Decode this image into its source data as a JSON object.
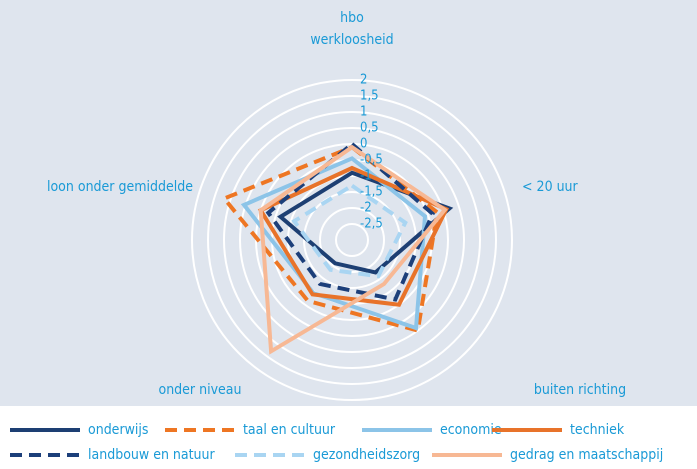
{
  "chart_data": {
    "type": "radar",
    "categories": [
      "hbo\nwerkloosheid",
      "< 20 uur",
      "buiten richting",
      "onder niveau",
      "loon onder gemiddelde"
    ],
    "ylim": [
      -3,
      2
    ],
    "yticks": [
      2,
      {
        "value": 1.5,
        "label": "1,5"
      },
      1,
      {
        "value": 0.5,
        "label": "0,5"
      },
      0,
      {
        "value": -0.5,
        "label": "-0,5"
      },
      -1,
      {
        "value": -1.5,
        "label": "-1,5"
      },
      -2,
      {
        "value": -2.5,
        "label": "-2,5"
      }
    ],
    "grid": true,
    "legend": "bottom",
    "series": [
      {
        "name": "onderwijs",
        "color": "#1d3f73",
        "dashed": false,
        "values": [
          -0.9,
          0.2,
          -1.75,
          -2.1,
          -0.65
        ]
      },
      {
        "name": "taal en cultuur",
        "color": "#ee7623",
        "dashed": true,
        "values": [
          -0.1,
          -0.2,
          0.5,
          -0.65,
          1.2
        ]
      },
      {
        "name": "economie",
        "color": "#8cc4e8",
        "dashed": false,
        "values": [
          -0.45,
          -0.6,
          0.4,
          -0.95,
          0.55
        ]
      },
      {
        "name": "techniek",
        "color": "#e8732a",
        "dashed": false,
        "values": [
          -0.75,
          0.1,
          -0.5,
          -0.9,
          0
        ]
      },
      {
        "name": "landbouw en natuur",
        "color": "#1c3f7a",
        "dashed": true,
        "values": [
          0,
          -0.35,
          -0.7,
          -1.3,
          -0.25
        ]
      },
      {
        "name": "gezondheidszorg",
        "color": "#a9d5f2",
        "dashed": true,
        "values": [
          -1.3,
          -1.25,
          -1.6,
          -1.85,
          -1.1
        ]
      },
      {
        "name": "gedrag en maatschappij",
        "color": "#f7b894",
        "dashed": false,
        "values": [
          -0.1,
          0.05,
          -1.3,
          1.3,
          0
        ]
      }
    ]
  }
}
